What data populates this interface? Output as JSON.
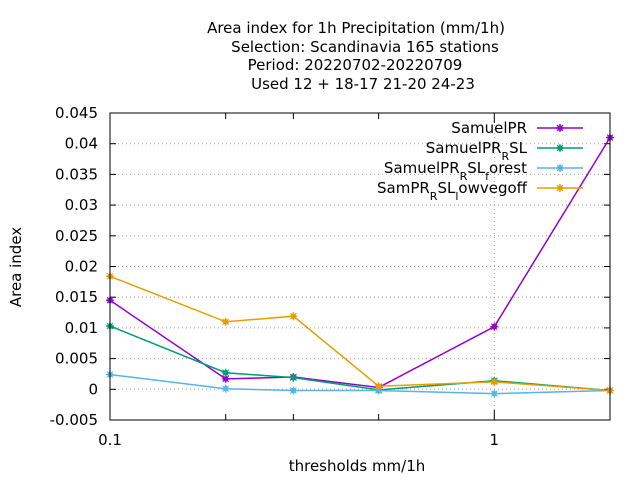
{
  "chart_data": {
    "type": "line",
    "title_lines": [
      "Area index  for 1h Precipitation (mm/1h)",
      "Selection: Scandinavia    165 stations",
      "Period: 20220702-20220709",
      "Used  12 + 18-17 21-20 24-23"
    ],
    "xlabel": "thresholds mm/1h",
    "ylabel": "Area index",
    "x_scale": "log",
    "xlim": [
      0.1,
      2.0
    ],
    "ylim": [
      -0.005,
      0.045
    ],
    "x_tick_labels": [
      {
        "value": 0.1,
        "label": "0.1"
      },
      {
        "value": 1,
        "label": "1"
      }
    ],
    "x_minor_ticks": [
      0.2,
      0.3,
      0.5,
      2.0
    ],
    "y_ticks": [
      -0.005,
      0,
      0.005,
      0.01,
      0.015,
      0.02,
      0.025,
      0.03,
      0.035,
      0.04,
      0.045
    ],
    "y_tick_labels": [
      "-0.005",
      "0",
      "0.005",
      "0.01",
      "0.015",
      "0.02",
      "0.025",
      "0.03",
      "0.035",
      "0.04",
      "0.045"
    ],
    "grid": "dotted",
    "legend_position": "top-right",
    "x": [
      0.1,
      0.2,
      0.3,
      0.5,
      1.0,
      2.0
    ],
    "series": [
      {
        "name": "SamuelPR",
        "legend_main": "SamuelPR",
        "legend_sub": "",
        "legend_tail": "",
        "color": "#9400d3",
        "values": [
          0.0145,
          0.0017,
          0.002,
          0.0003,
          0.0102,
          0.041
        ]
      },
      {
        "name": "SamuelPR_RSL",
        "legend_main": "SamuelPR",
        "legend_sub": "R",
        "legend_tail": "SL",
        "color": "#009e73",
        "values": [
          0.0103,
          0.0027,
          0.0019,
          -0.0001,
          0.0014,
          -0.0002
        ]
      },
      {
        "name": "SamuelPR_RSL_forest",
        "legend_main": "SamuelPR",
        "legend_sub": "R",
        "legend_tail": "SL",
        "legend_sub2": "f",
        "legend_tail2": "orest",
        "color": "#56b4e9",
        "values": [
          0.0024,
          0.0001,
          -0.0002,
          -0.0002,
          -0.0007,
          -0.0002
        ]
      },
      {
        "name": "SamPR_RSL_lowvegoff",
        "legend_main": "SamPR",
        "legend_sub": "R",
        "legend_tail": "SL",
        "legend_sub2": "l",
        "legend_tail2": "owvegoff",
        "color": "#e69f00",
        "values": [
          0.0184,
          0.011,
          0.0119,
          0.0005,
          0.0012,
          -0.0002
        ]
      }
    ]
  }
}
